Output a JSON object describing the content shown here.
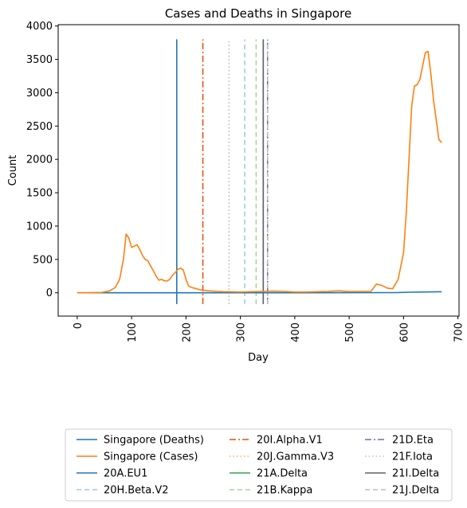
{
  "chart_data": {
    "type": "line",
    "title": "Cases and Deaths in Singapore",
    "xlabel": "Day",
    "ylabel": "Count",
    "xlim": [
      -35,
      702
    ],
    "ylim": [
      -350,
      4020
    ],
    "x_ticks": [
      0,
      100,
      200,
      300,
      400,
      500,
      600,
      700
    ],
    "y_ticks": [
      0,
      500,
      1000,
      1500,
      2000,
      2500,
      3000,
      3500,
      4000
    ],
    "legend_position": "bottom",
    "series": [
      {
        "name": "Singapore (Deaths)",
        "color": "#1f77b4",
        "x": [
          0,
          100,
          200,
          300,
          400,
          500,
          590,
          610,
          640,
          670
        ],
        "values": [
          0,
          0,
          0,
          0,
          0,
          1,
          3,
          8,
          12,
          15
        ]
      },
      {
        "name": "Singapore (Cases)",
        "color": "#ff7f0e",
        "x": [
          0,
          20,
          45,
          60,
          70,
          78,
          85,
          90,
          95,
          100,
          105,
          110,
          115,
          120,
          125,
          130,
          135,
          140,
          145,
          150,
          155,
          160,
          165,
          170,
          175,
          180,
          185,
          190,
          195,
          200,
          205,
          210,
          215,
          220,
          225,
          230,
          240,
          250,
          260,
          270,
          280,
          300,
          320,
          340,
          360,
          380,
          400,
          420,
          440,
          460,
          480,
          500,
          520,
          540,
          550,
          560,
          570,
          580,
          590,
          600,
          605,
          610,
          615,
          620,
          625,
          630,
          635,
          640,
          645,
          650,
          655,
          660,
          665,
          670
        ],
        "values": [
          0,
          0,
          5,
          30,
          80,
          200,
          500,
          880,
          820,
          680,
          700,
          720,
          650,
          560,
          500,
          480,
          400,
          330,
          250,
          190,
          200,
          180,
          175,
          200,
          260,
          300,
          350,
          370,
          340,
          200,
          100,
          80,
          70,
          60,
          45,
          40,
          30,
          25,
          20,
          15,
          15,
          10,
          15,
          20,
          25,
          20,
          10,
          10,
          15,
          20,
          30,
          20,
          20,
          20,
          130,
          110,
          70,
          60,
          200,
          600,
          1200,
          2000,
          2800,
          3100,
          3120,
          3200,
          3400,
          3600,
          3620,
          3300,
          2900,
          2600,
          2300,
          2250
        ]
      }
    ],
    "variant_lines": [
      {
        "name": "20A.EU1",
        "x": 183,
        "color": "#1f77b4",
        "dash": "solid",
        "ymin": -170,
        "ymax": 3800
      },
      {
        "name": "20H.Beta.V2",
        "x": 308,
        "color": "#9ecae1",
        "dash": "dashed",
        "ymin": -170,
        "ymax": 3800
      },
      {
        "name": "20I.Alpha.V1",
        "x": 231,
        "color": "#e6550d",
        "dash": "dashdot",
        "ymin": -170,
        "ymax": 3800
      },
      {
        "name": "20J.Gamma.V3",
        "x": 279,
        "color": "#fdae6b",
        "dash": "dotted",
        "ymin": -170,
        "ymax": 3800
      },
      {
        "name": "21A.Delta",
        "x": 342,
        "color": "#31a354",
        "dash": "solid",
        "ymin": -170,
        "ymax": 3800
      },
      {
        "name": "21B.Kappa",
        "x": 329,
        "color": "#a1d99b",
        "dash": "dashed",
        "ymin": -170,
        "ymax": 3800
      },
      {
        "name": "21D.Eta",
        "x": 350,
        "color": "#756bb1",
        "dash": "dashdot",
        "ymin": -170,
        "ymax": 3800
      },
      {
        "name": "21F.Iota",
        "x": 279,
        "color": "#bcbddc",
        "dash": "dotted",
        "ymin": -170,
        "ymax": 3800
      },
      {
        "name": "21I.Delta",
        "x": 342,
        "color": "#636363",
        "dash": "solid",
        "ymin": -170,
        "ymax": 3800
      },
      {
        "name": "21J.Delta",
        "x": 350,
        "color": "#bdbdbd",
        "dash": "dashed",
        "ymin": -170,
        "ymax": 3800
      }
    ],
    "legend": [
      {
        "label": "Singapore (Deaths)",
        "color": "#1f77b4",
        "dash": "solid"
      },
      {
        "label": "Singapore (Cases)",
        "color": "#ff7f0e",
        "dash": "solid"
      },
      {
        "label": "20A.EU1",
        "color": "#1f77b4",
        "dash": "solid"
      },
      {
        "label": "20H.Beta.V2",
        "color": "#9ecae1",
        "dash": "dashed"
      },
      {
        "label": "20I.Alpha.V1",
        "color": "#e6550d",
        "dash": "dashdot"
      },
      {
        "label": "20J.Gamma.V3",
        "color": "#fdae6b",
        "dash": "dotted"
      },
      {
        "label": "21A.Delta",
        "color": "#31a354",
        "dash": "solid"
      },
      {
        "label": "21B.Kappa",
        "color": "#a1d99b",
        "dash": "dashed"
      },
      {
        "label": "21D.Eta",
        "color": "#756bb1",
        "dash": "dashdot"
      },
      {
        "label": "21F.Iota",
        "color": "#bcbddc",
        "dash": "dotted"
      },
      {
        "label": "21I.Delta",
        "color": "#636363",
        "dash": "solid"
      },
      {
        "label": "21J.Delta",
        "color": "#bdbdbd",
        "dash": "dashed"
      }
    ]
  }
}
